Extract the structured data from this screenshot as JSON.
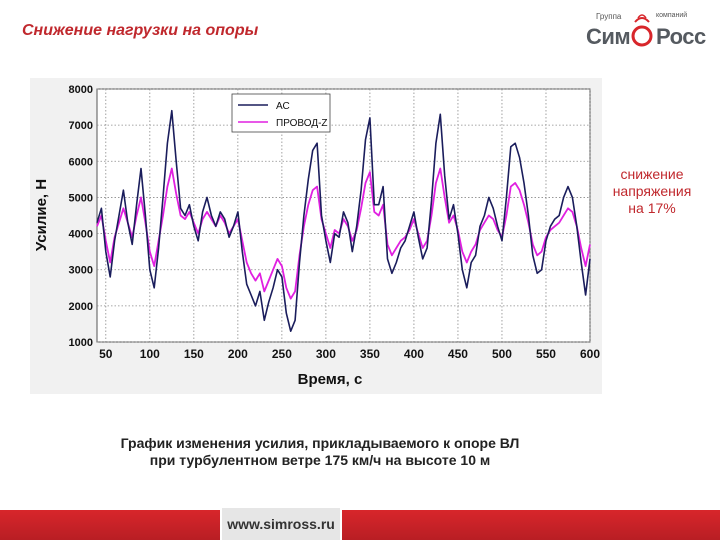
{
  "slide": {
    "title": "Снижение нагрузки на опоры",
    "callout_line1": "снижение",
    "callout_line2": "напряжения",
    "callout_line3": "на 17%",
    "caption_line1": "График изменения усилия, прикладываемого к опоре ВЛ",
    "caption_line2": "при турбулентном ветре 175 км/ч на высоте 10 м",
    "footer_url": "www.simross.ru"
  },
  "logo": {
    "group": "Группа",
    "company": "компаний",
    "sim": "Сим",
    "ross": "Росс"
  },
  "colors": {
    "title_red": "#c0282d",
    "series_ac": "#1a1d5c",
    "series_provod": "#e020e0",
    "footer_red": "#c8232a"
  },
  "chart_data": {
    "type": "line",
    "title": "",
    "xlabel": "Время, с",
    "ylabel": "Усилие, Н",
    "xlim": [
      40,
      600
    ],
    "ylim": [
      1000,
      8000
    ],
    "xticks": [
      50,
      100,
      150,
      200,
      250,
      300,
      350,
      400,
      450,
      500,
      550,
      600
    ],
    "yticks": [
      1000,
      2000,
      3000,
      4000,
      5000,
      6000,
      7000,
      8000
    ],
    "grid": true,
    "legend_position": "top-left",
    "series": [
      {
        "name": "АС",
        "color": "#1a1d5c",
        "x": [
          40,
          45,
          50,
          55,
          60,
          65,
          70,
          75,
          80,
          85,
          90,
          95,
          100,
          105,
          110,
          115,
          120,
          125,
          130,
          135,
          140,
          145,
          150,
          155,
          160,
          165,
          170,
          175,
          180,
          185,
          190,
          195,
          200,
          205,
          210,
          215,
          220,
          225,
          230,
          235,
          240,
          245,
          250,
          255,
          260,
          265,
          270,
          275,
          280,
          285,
          290,
          295,
          300,
          305,
          310,
          315,
          320,
          325,
          330,
          335,
          340,
          345,
          350,
          355,
          360,
          365,
          370,
          375,
          380,
          385,
          390,
          395,
          400,
          405,
          410,
          415,
          420,
          425,
          430,
          435,
          440,
          445,
          450,
          455,
          460,
          465,
          470,
          475,
          480,
          485,
          490,
          495,
          500,
          505,
          510,
          515,
          520,
          525,
          530,
          535,
          540,
          545,
          550,
          555,
          560,
          565,
          570,
          575,
          580,
          585,
          590,
          595,
          600
        ],
        "y": [
          4300,
          4700,
          3500,
          2800,
          3800,
          4500,
          5200,
          4300,
          3700,
          4800,
          5800,
          4500,
          3000,
          2500,
          3600,
          5000,
          6500,
          7400,
          6000,
          4700,
          4500,
          4800,
          4200,
          3800,
          4600,
          5000,
          4500,
          4200,
          4600,
          4400,
          3900,
          4200,
          4600,
          3500,
          2600,
          2300,
          2000,
          2400,
          1600,
          2100,
          2500,
          3000,
          2800,
          1800,
          1300,
          1600,
          3200,
          4500,
          5500,
          6300,
          6500,
          4500,
          3800,
          3200,
          4000,
          3900,
          4600,
          4300,
          3500,
          4200,
          5200,
          6600,
          7200,
          4800,
          4800,
          5300,
          3300,
          2900,
          3200,
          3600,
          3800,
          4200,
          4600,
          3900,
          3300,
          3600,
          4900,
          6500,
          7300,
          5600,
          4400,
          4800,
          4000,
          3000,
          2500,
          3200,
          3400,
          4200,
          4500,
          5000,
          4700,
          4200,
          3800,
          5000,
          6400,
          6500,
          6100,
          5400,
          4500,
          3400,
          2900,
          3000,
          3800,
          4200,
          4400,
          4500,
          5000,
          5300,
          5000,
          4200,
          3200,
          2300,
          3300
        ]
      },
      {
        "name": "ПРОВОД-Z",
        "color": "#e020e0",
        "x": [
          40,
          45,
          50,
          55,
          60,
          65,
          70,
          75,
          80,
          85,
          90,
          95,
          100,
          105,
          110,
          115,
          120,
          125,
          130,
          135,
          140,
          145,
          150,
          155,
          160,
          165,
          170,
          175,
          180,
          185,
          190,
          195,
          200,
          205,
          210,
          215,
          220,
          225,
          230,
          235,
          240,
          245,
          250,
          255,
          260,
          265,
          270,
          275,
          280,
          285,
          290,
          295,
          300,
          305,
          310,
          315,
          320,
          325,
          330,
          335,
          340,
          345,
          350,
          355,
          360,
          365,
          370,
          375,
          380,
          385,
          390,
          395,
          400,
          405,
          410,
          415,
          420,
          425,
          430,
          435,
          440,
          445,
          450,
          455,
          460,
          465,
          470,
          475,
          480,
          485,
          490,
          495,
          500,
          505,
          510,
          515,
          520,
          525,
          530,
          535,
          540,
          545,
          550,
          555,
          560,
          565,
          570,
          575,
          580,
          585,
          590,
          595,
          600
        ],
        "y": [
          4200,
          4500,
          3800,
          3200,
          3900,
          4300,
          4700,
          4300,
          3900,
          4500,
          5000,
          4300,
          3500,
          3100,
          3800,
          4500,
          5300,
          5800,
          5100,
          4500,
          4400,
          4600,
          4300,
          4000,
          4400,
          4600,
          4400,
          4200,
          4500,
          4300,
          4000,
          4200,
          4400,
          3800,
          3200,
          2900,
          2700,
          2900,
          2400,
          2700,
          3000,
          3300,
          3100,
          2500,
          2200,
          2400,
          3400,
          4200,
          4800,
          5200,
          5300,
          4400,
          4000,
          3600,
          4100,
          4000,
          4400,
          4200,
          3800,
          4100,
          4700,
          5400,
          5700,
          4600,
          4500,
          4800,
          3700,
          3400,
          3600,
          3800,
          3900,
          4100,
          4400,
          4000,
          3600,
          3800,
          4500,
          5400,
          5800,
          5000,
          4300,
          4500,
          4100,
          3500,
          3200,
          3500,
          3700,
          4100,
          4300,
          4500,
          4400,
          4100,
          3900,
          4500,
          5300,
          5400,
          5200,
          4800,
          4300,
          3700,
          3400,
          3500,
          3900,
          4100,
          4200,
          4300,
          4500,
          4700,
          4600,
          4200,
          3600,
          3100,
          3700
        ]
      }
    ]
  }
}
